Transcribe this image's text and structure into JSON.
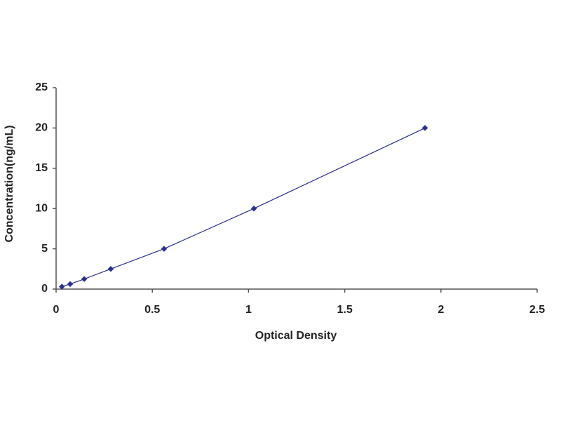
{
  "chart_data": {
    "type": "line",
    "x": [
      0.03,
      0.073,
      0.146,
      0.284,
      0.561,
      1.028,
      1.917
    ],
    "values": [
      0.31,
      0.625,
      1.25,
      2.5,
      5,
      10,
      20
    ],
    "color": "#2b2f8f",
    "xlabel": "Optical Density",
    "ylabel": "Concentration(ng/mL)",
    "xlim": [
      0,
      2.5
    ],
    "xticks": [
      0,
      0.5,
      1,
      1.5,
      2,
      2.5
    ],
    "ylim": [
      0,
      25
    ],
    "yticks": [
      0,
      5,
      10,
      15,
      20,
      25
    ],
    "grid": false
  }
}
